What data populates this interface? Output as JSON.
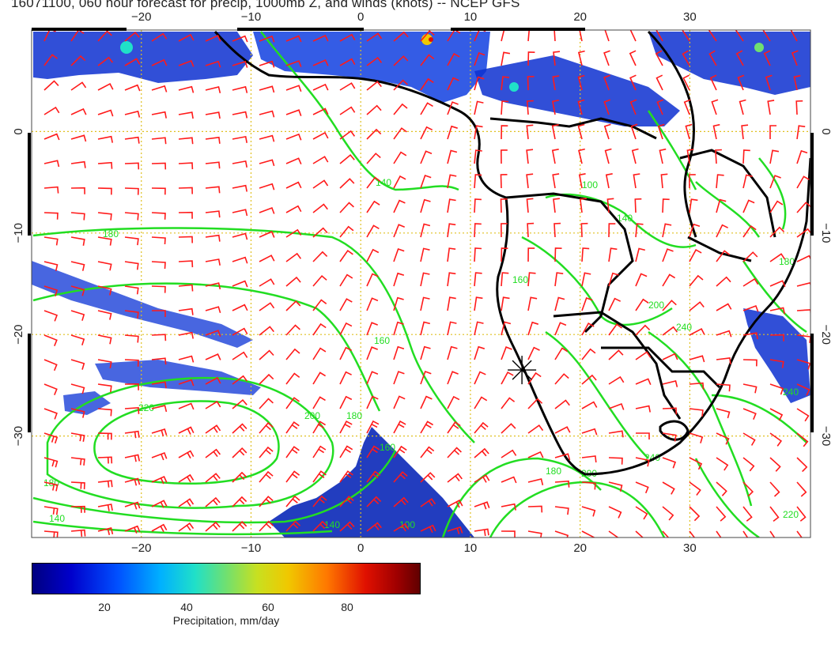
{
  "title": "16071100, 060 hour forecast for precip, 1000mb Z, and winds (knots) -- NCEP GFS",
  "map": {
    "lon_range": [
      -30,
      41
    ],
    "lat_range": [
      -40,
      10
    ],
    "lon_ticks": [
      -20,
      -10,
      0,
      10,
      20,
      30
    ],
    "lat_ticks": [
      0,
      -10,
      -20,
      -30
    ],
    "lon_tick_labels": [
      "−20",
      "−10",
      "0",
      "10",
      "20",
      "30"
    ],
    "lat_tick_labels": [
      "0",
      "−10",
      "−20",
      "−30"
    ],
    "grid": "dotted",
    "contour_labels": [
      "100",
      "140",
      "160",
      "180",
      "200",
      "220",
      "240"
    ],
    "colors": {
      "wind_barbs": "#ff1a1a",
      "contours": "#22dd22",
      "coastline": "#000000",
      "grid": "#e0c020"
    },
    "marker": {
      "name": "cross-marker",
      "lon": 14.7,
      "lat": -23.5
    }
  },
  "colorbar": {
    "ticks": [
      "20",
      "40",
      "60",
      "80"
    ],
    "tick_values": [
      20,
      40,
      60,
      80
    ],
    "range": [
      0,
      100
    ],
    "title": "Precipitation, mm/day"
  }
}
